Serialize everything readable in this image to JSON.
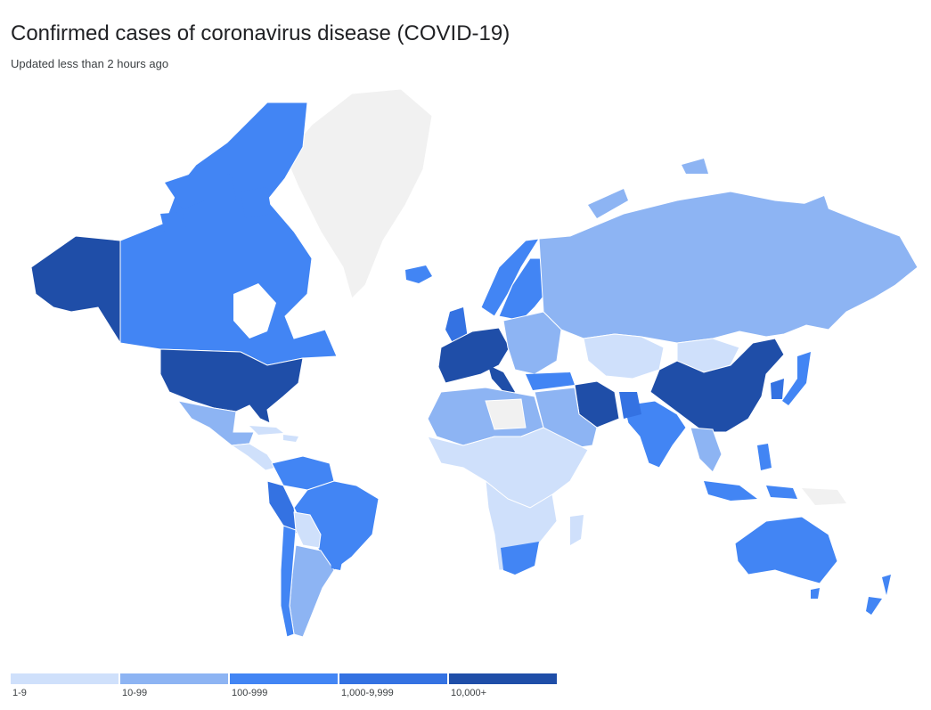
{
  "header": {
    "title": "Confirmed cases of coronavirus disease (COVID-19)",
    "subtitle": "Updated less than 2 hours ago"
  },
  "colors": {
    "no_data": "#f1f1f1",
    "border": "#ffffff",
    "bin_1": "#cfe0fb",
    "bin_2": "#8db4f3",
    "bin_3": "#4285f4",
    "bin_4": "#3472e2",
    "bin_5": "#1f4ea8"
  },
  "legend": [
    {
      "label": "1-9",
      "color": "#cfe0fb"
    },
    {
      "label": "10-99",
      "color": "#8db4f3"
    },
    {
      "label": "100-999",
      "color": "#4285f4"
    },
    {
      "label": "1,000-9,999",
      "color": "#3472e2"
    },
    {
      "label": "10,000+",
      "color": "#1f4ea8"
    }
  ]
}
